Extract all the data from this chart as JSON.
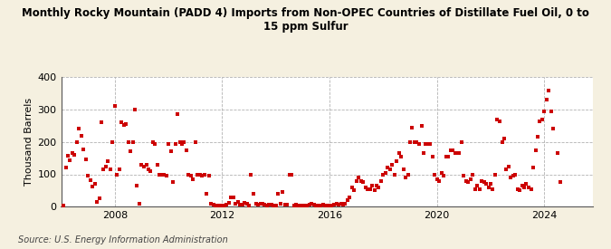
{
  "title": "Monthly Rocky Mountain (PADD 4) Imports from Non-OPEC Countries of Distillate Fuel Oil, 0 to\n15 ppm Sulfur",
  "ylabel": "Thousand Barrels",
  "source": "Source: U.S. Energy Information Administration",
  "background_color": "#f5f0e0",
  "plot_bg_color": "#ffffff",
  "dot_color": "#cc0000",
  "grid_color": "#aaaaaa",
  "ylim": [
    0,
    400
  ],
  "yticks": [
    0,
    100,
    200,
    300,
    400
  ],
  "xlim": [
    2006.0,
    2025.8
  ],
  "xticks": [
    2008,
    2012,
    2016,
    2020,
    2024
  ],
  "data": [
    [
      2006.08,
      3
    ],
    [
      2006.17,
      121
    ],
    [
      2006.25,
      156
    ],
    [
      2006.33,
      143
    ],
    [
      2006.42,
      167
    ],
    [
      2006.5,
      160
    ],
    [
      2006.58,
      200
    ],
    [
      2006.67,
      240
    ],
    [
      2006.75,
      220
    ],
    [
      2006.83,
      178
    ],
    [
      2006.92,
      145
    ],
    [
      2007.0,
      95
    ],
    [
      2007.08,
      83
    ],
    [
      2007.17,
      62
    ],
    [
      2007.25,
      70
    ],
    [
      2007.33,
      15
    ],
    [
      2007.42,
      25
    ],
    [
      2007.5,
      260
    ],
    [
      2007.58,
      115
    ],
    [
      2007.67,
      125
    ],
    [
      2007.75,
      140
    ],
    [
      2007.83,
      115
    ],
    [
      2007.92,
      200
    ],
    [
      2008.0,
      312
    ],
    [
      2008.08,
      100
    ],
    [
      2008.17,
      115
    ],
    [
      2008.25,
      260
    ],
    [
      2008.33,
      252
    ],
    [
      2008.42,
      255
    ],
    [
      2008.5,
      200
    ],
    [
      2008.58,
      170
    ],
    [
      2008.67,
      200
    ],
    [
      2008.75,
      300
    ],
    [
      2008.83,
      65
    ],
    [
      2008.92,
      10
    ],
    [
      2009.0,
      130
    ],
    [
      2009.08,
      125
    ],
    [
      2009.17,
      130
    ],
    [
      2009.25,
      115
    ],
    [
      2009.33,
      110
    ],
    [
      2009.42,
      200
    ],
    [
      2009.5,
      195
    ],
    [
      2009.58,
      130
    ],
    [
      2009.67,
      100
    ],
    [
      2009.75,
      100
    ],
    [
      2009.83,
      100
    ],
    [
      2009.92,
      95
    ],
    [
      2010.0,
      195
    ],
    [
      2010.08,
      170
    ],
    [
      2010.17,
      75
    ],
    [
      2010.25,
      195
    ],
    [
      2010.33,
      285
    ],
    [
      2010.42,
      200
    ],
    [
      2010.5,
      195
    ],
    [
      2010.58,
      200
    ],
    [
      2010.67,
      175
    ],
    [
      2010.75,
      100
    ],
    [
      2010.83,
      95
    ],
    [
      2010.92,
      85
    ],
    [
      2011.0,
      200
    ],
    [
      2011.08,
      100
    ],
    [
      2011.17,
      100
    ],
    [
      2011.25,
      95
    ],
    [
      2011.33,
      100
    ],
    [
      2011.42,
      40
    ],
    [
      2011.5,
      95
    ],
    [
      2011.58,
      10
    ],
    [
      2011.67,
      5
    ],
    [
      2011.75,
      3
    ],
    [
      2011.83,
      3
    ],
    [
      2011.92,
      3
    ],
    [
      2012.0,
      3
    ],
    [
      2012.08,
      3
    ],
    [
      2012.17,
      5
    ],
    [
      2012.25,
      12
    ],
    [
      2012.33,
      30
    ],
    [
      2012.42,
      30
    ],
    [
      2012.5,
      10
    ],
    [
      2012.58,
      15
    ],
    [
      2012.67,
      5
    ],
    [
      2012.75,
      5
    ],
    [
      2012.83,
      12
    ],
    [
      2012.92,
      8
    ],
    [
      2013.0,
      3
    ],
    [
      2013.08,
      100
    ],
    [
      2013.17,
      40
    ],
    [
      2013.25,
      10
    ],
    [
      2013.33,
      5
    ],
    [
      2013.42,
      10
    ],
    [
      2013.5,
      8
    ],
    [
      2013.58,
      5
    ],
    [
      2013.67,
      3
    ],
    [
      2013.75,
      5
    ],
    [
      2013.83,
      5
    ],
    [
      2013.92,
      3
    ],
    [
      2014.0,
      3
    ],
    [
      2014.08,
      40
    ],
    [
      2014.17,
      10
    ],
    [
      2014.25,
      45
    ],
    [
      2014.33,
      5
    ],
    [
      2014.42,
      5
    ],
    [
      2014.5,
      100
    ],
    [
      2014.58,
      100
    ],
    [
      2014.67,
      3
    ],
    [
      2014.75,
      5
    ],
    [
      2014.83,
      3
    ],
    [
      2014.92,
      3
    ],
    [
      2015.0,
      3
    ],
    [
      2015.08,
      3
    ],
    [
      2015.17,
      3
    ],
    [
      2015.25,
      5
    ],
    [
      2015.33,
      10
    ],
    [
      2015.42,
      5
    ],
    [
      2015.5,
      3
    ],
    [
      2015.58,
      3
    ],
    [
      2015.67,
      3
    ],
    [
      2015.75,
      5
    ],
    [
      2015.83,
      3
    ],
    [
      2015.92,
      3
    ],
    [
      2016.0,
      3
    ],
    [
      2016.08,
      3
    ],
    [
      2016.17,
      5
    ],
    [
      2016.25,
      8
    ],
    [
      2016.33,
      5
    ],
    [
      2016.42,
      10
    ],
    [
      2016.5,
      5
    ],
    [
      2016.58,
      10
    ],
    [
      2016.67,
      20
    ],
    [
      2016.75,
      30
    ],
    [
      2016.83,
      60
    ],
    [
      2016.92,
      50
    ],
    [
      2017.0,
      80
    ],
    [
      2017.08,
      90
    ],
    [
      2017.17,
      80
    ],
    [
      2017.25,
      75
    ],
    [
      2017.33,
      60
    ],
    [
      2017.42,
      55
    ],
    [
      2017.5,
      55
    ],
    [
      2017.58,
      65
    ],
    [
      2017.67,
      50
    ],
    [
      2017.75,
      65
    ],
    [
      2017.83,
      60
    ],
    [
      2017.92,
      80
    ],
    [
      2018.0,
      100
    ],
    [
      2018.08,
      105
    ],
    [
      2018.17,
      120
    ],
    [
      2018.25,
      115
    ],
    [
      2018.33,
      130
    ],
    [
      2018.42,
      100
    ],
    [
      2018.5,
      140
    ],
    [
      2018.58,
      165
    ],
    [
      2018.67,
      155
    ],
    [
      2018.75,
      115
    ],
    [
      2018.83,
      90
    ],
    [
      2018.92,
      100
    ],
    [
      2019.0,
      200
    ],
    [
      2019.08,
      245
    ],
    [
      2019.17,
      200
    ],
    [
      2019.25,
      200
    ],
    [
      2019.33,
      195
    ],
    [
      2019.42,
      250
    ],
    [
      2019.5,
      165
    ],
    [
      2019.58,
      195
    ],
    [
      2019.67,
      195
    ],
    [
      2019.75,
      195
    ],
    [
      2019.83,
      155
    ],
    [
      2019.92,
      100
    ],
    [
      2020.0,
      85
    ],
    [
      2020.08,
      80
    ],
    [
      2020.17,
      105
    ],
    [
      2020.25,
      95
    ],
    [
      2020.33,
      155
    ],
    [
      2020.42,
      155
    ],
    [
      2020.5,
      175
    ],
    [
      2020.58,
      175
    ],
    [
      2020.67,
      165
    ],
    [
      2020.75,
      165
    ],
    [
      2020.83,
      165
    ],
    [
      2020.92,
      200
    ],
    [
      2021.0,
      95
    ],
    [
      2021.08,
      80
    ],
    [
      2021.17,
      75
    ],
    [
      2021.25,
      85
    ],
    [
      2021.33,
      100
    ],
    [
      2021.42,
      55
    ],
    [
      2021.5,
      65
    ],
    [
      2021.58,
      55
    ],
    [
      2021.67,
      80
    ],
    [
      2021.75,
      75
    ],
    [
      2021.83,
      70
    ],
    [
      2021.92,
      60
    ],
    [
      2022.0,
      70
    ],
    [
      2022.08,
      55
    ],
    [
      2022.17,
      100
    ],
    [
      2022.25,
      270
    ],
    [
      2022.33,
      265
    ],
    [
      2022.42,
      200
    ],
    [
      2022.5,
      210
    ],
    [
      2022.58,
      115
    ],
    [
      2022.67,
      125
    ],
    [
      2022.75,
      90
    ],
    [
      2022.83,
      95
    ],
    [
      2022.92,
      100
    ],
    [
      2023.0,
      55
    ],
    [
      2023.08,
      50
    ],
    [
      2023.17,
      65
    ],
    [
      2023.25,
      60
    ],
    [
      2023.33,
      70
    ],
    [
      2023.42,
      60
    ],
    [
      2023.5,
      55
    ],
    [
      2023.58,
      120
    ],
    [
      2023.67,
      175
    ],
    [
      2023.75,
      215
    ],
    [
      2023.83,
      265
    ],
    [
      2023.92,
      270
    ],
    [
      2024.0,
      295
    ],
    [
      2024.08,
      330
    ],
    [
      2024.17,
      360
    ],
    [
      2024.25,
      295
    ],
    [
      2024.33,
      240
    ],
    [
      2024.5,
      165
    ],
    [
      2024.58,
      75
    ]
  ]
}
